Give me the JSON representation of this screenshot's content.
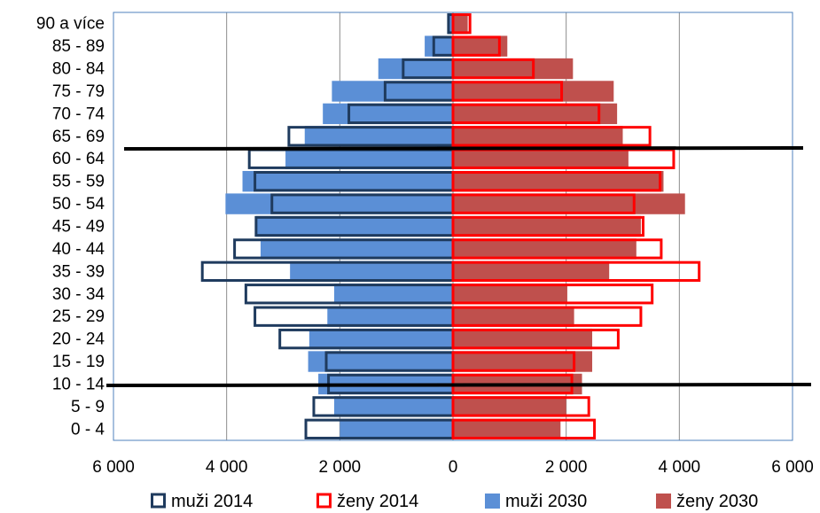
{
  "chart_data": {
    "type": "bar",
    "orientation": "horizontal",
    "layout": "population-pyramid",
    "categories": [
      "0 - 4",
      "5 - 9",
      "10 - 14",
      "15 - 19",
      "20 - 24",
      "25 - 29",
      "30 - 34",
      "35 - 39",
      "40 - 44",
      "45 - 49",
      "50 - 54",
      "55 - 59",
      "60 - 64",
      "65 - 69",
      "70 - 74",
      "75 - 79",
      "80 - 84",
      "85 - 89",
      "90 a více"
    ],
    "x_ticks": [
      -6000,
      -4000,
      -2000,
      0,
      2000,
      4000,
      6000
    ],
    "x_tick_labels": [
      "6 000",
      "4 000",
      "2 000",
      "0",
      "2 000",
      "4 000",
      "6 000"
    ],
    "xlim": [
      -6000,
      6000
    ],
    "grid": true,
    "legend_position": "bottom",
    "series": [
      {
        "name": "muži 2014",
        "side": "left",
        "style": "outline",
        "color": "#1f3b5e",
        "values": [
          2600,
          2460,
          2200,
          2240,
          3060,
          3500,
          3660,
          4430,
          3860,
          3480,
          3200,
          3500,
          3600,
          2900,
          1840,
          1200,
          880,
          340,
          80
        ]
      },
      {
        "name": "ženy 2014",
        "side": "right",
        "style": "outline",
        "color": "#ff0000",
        "values": [
          2500,
          2400,
          2100,
          2140,
          2920,
          3320,
          3520,
          4350,
          3680,
          3360,
          3200,
          3660,
          3900,
          3480,
          2580,
          1920,
          1420,
          820,
          300
        ]
      },
      {
        "name": "muži 2030",
        "side": "left",
        "style": "fill",
        "color": "#5b8fd6",
        "values": [
          2000,
          2100,
          2380,
          2560,
          2540,
          2220,
          2100,
          2880,
          3400,
          3480,
          4020,
          3720,
          2960,
          2620,
          2300,
          2140,
          1320,
          500,
          100
        ]
      },
      {
        "name": "ženy 2030",
        "side": "right",
        "style": "fill",
        "color": "#bf504d",
        "values": [
          1900,
          2000,
          2280,
          2460,
          2460,
          2140,
          2020,
          2760,
          3240,
          3320,
          4100,
          3720,
          3100,
          3000,
          2900,
          2840,
          2120,
          960,
          260
        ]
      }
    ],
    "annotation_lines": [
      {
        "between_categories": [
          "60 - 64",
          "65 - 69"
        ]
      },
      {
        "between_categories": [
          "10 - 14",
          "15 - 19"
        ]
      }
    ]
  }
}
